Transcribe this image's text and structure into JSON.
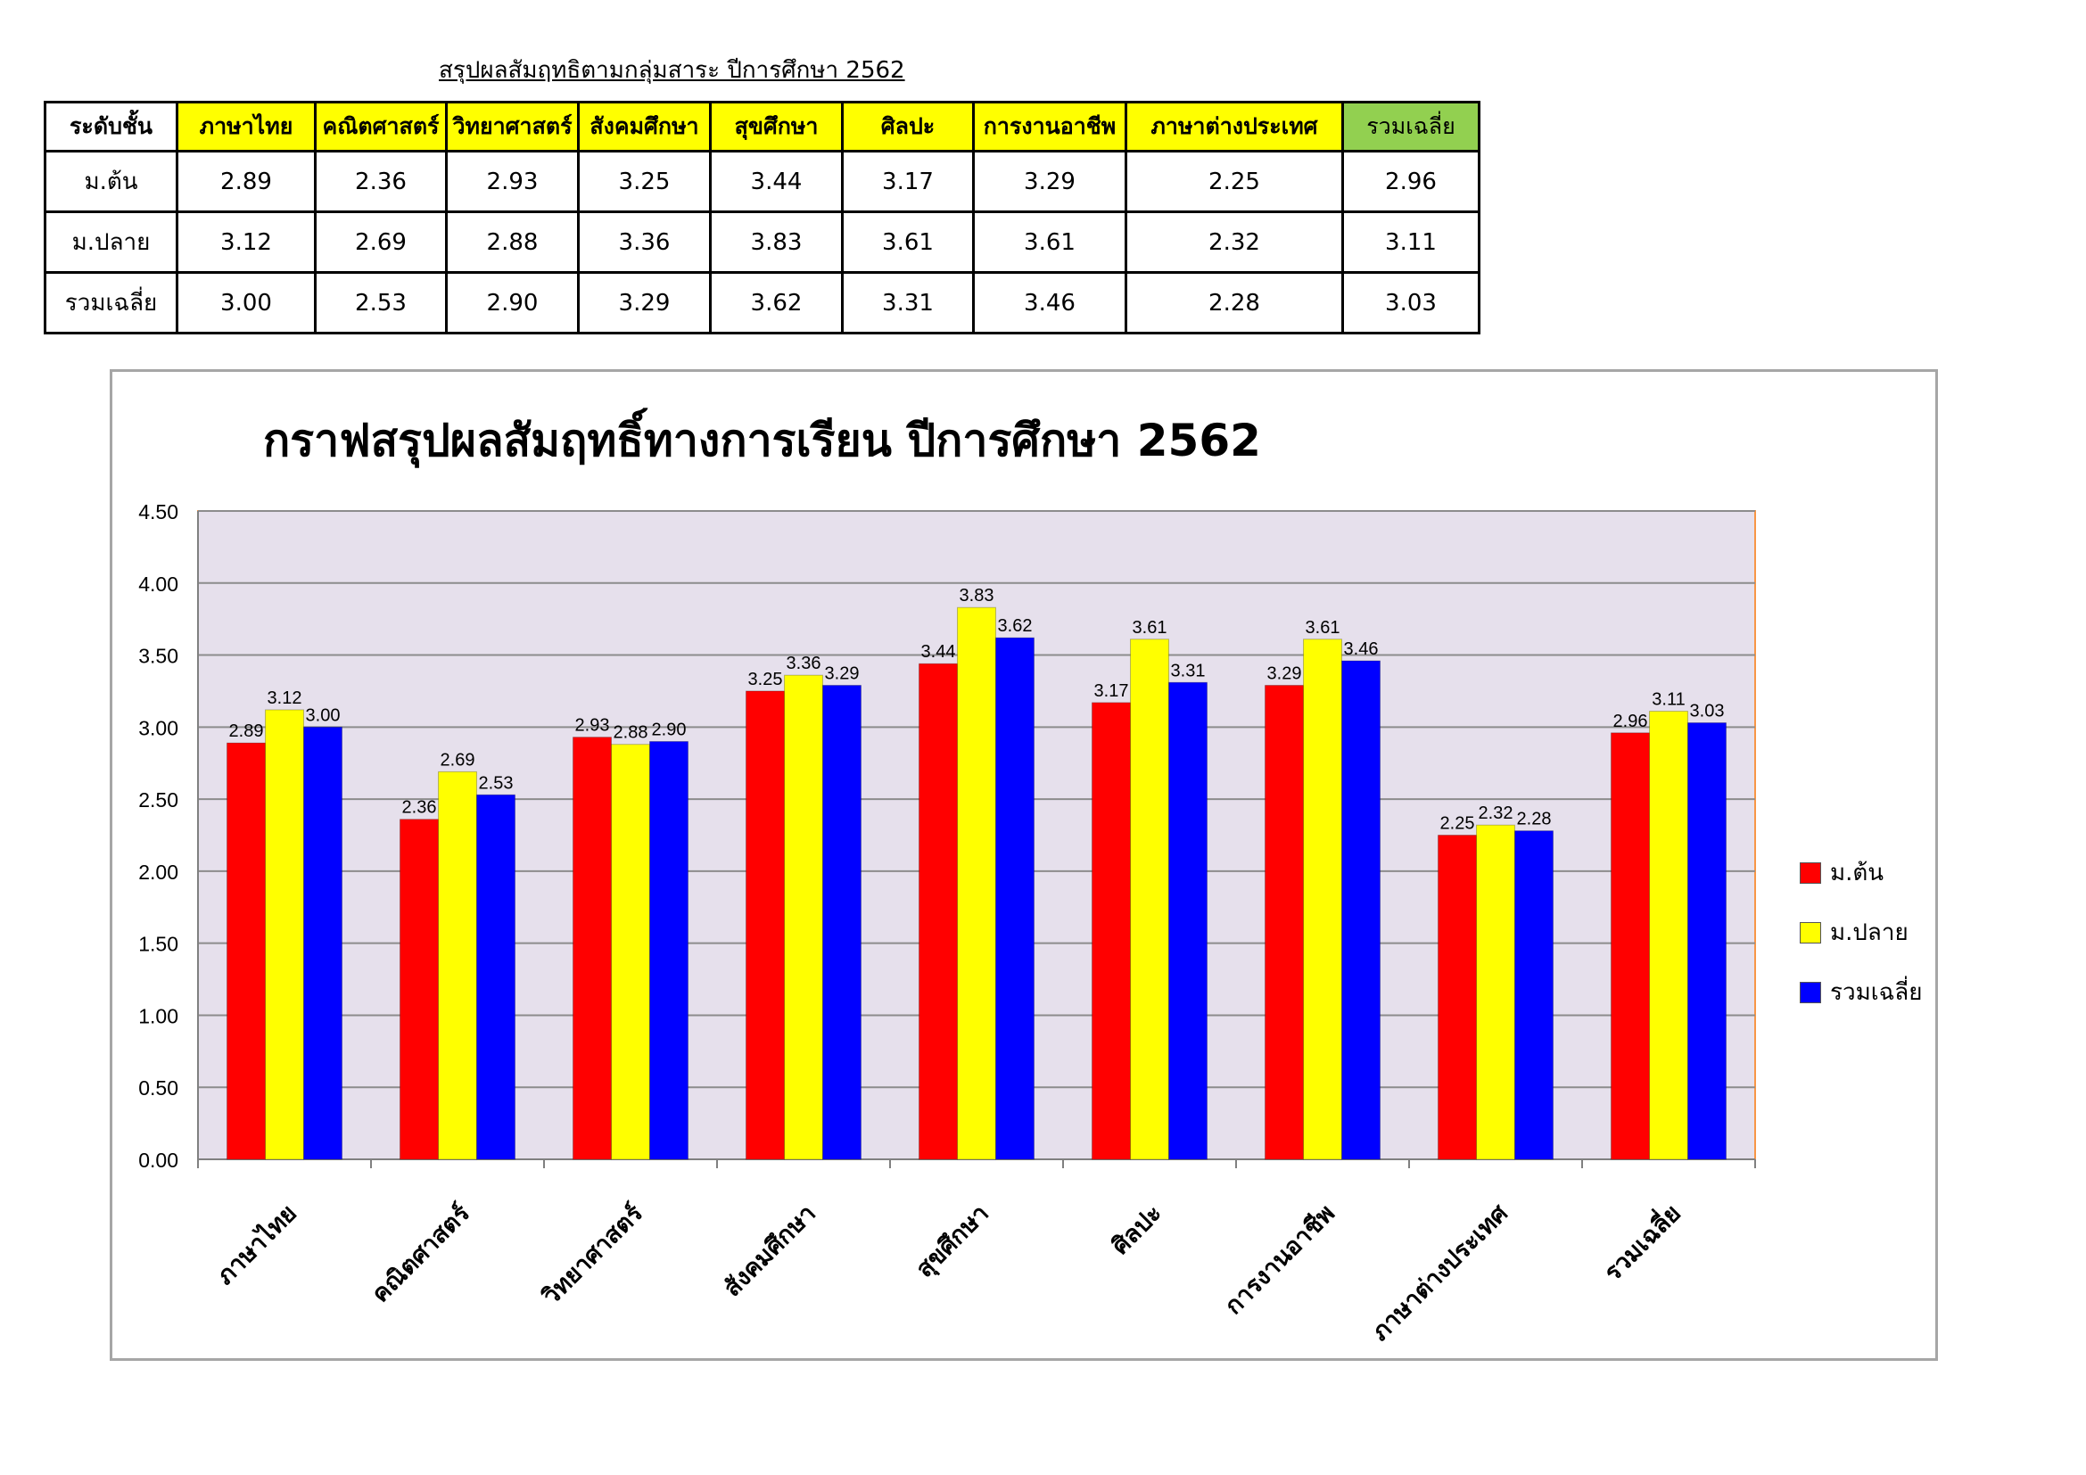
{
  "table": {
    "title": "สรุปผลสัมฤทธิตามกลุ่มสาระ ปีการศึกษา 2562",
    "header_level": "ระดับชั้น",
    "subjects": [
      "ภาษาไทย",
      "คณิตศาสตร์",
      "วิทยาศาสตร์",
      "สังคมศึกษา",
      "สุขศึกษา",
      "ศิลปะ",
      "การงานอาชีพ",
      "ภาษาต่างประเทศ",
      "รวมเฉลี่ย"
    ],
    "rows": [
      {
        "level": "ม.ต้น",
        "values": [
          "2.89",
          "2.36",
          "2.93",
          "3.25",
          "3.44",
          "3.17",
          "3.29",
          "2.25",
          "2.96"
        ]
      },
      {
        "level": "ม.ปลาย",
        "values": [
          "3.12",
          "2.69",
          "2.88",
          "3.36",
          "3.83",
          "3.61",
          "3.61",
          "2.32",
          "3.11"
        ]
      },
      {
        "level": "รวมเฉลี่ย",
        "values": [
          "3.00",
          "2.53",
          "2.90",
          "3.29",
          "3.62",
          "3.31",
          "3.46",
          "2.28",
          "3.03"
        ]
      }
    ],
    "colors": {
      "header_yellow": "#ffff00",
      "header_avg_green": "#92d050"
    }
  },
  "chart_data": {
    "type": "bar",
    "title": "กราฟสรุปผลสัมฤทธิ์ทางการเรียน ปีการศึกษา 2562",
    "categories": [
      "ภาษาไทย",
      "คณิตศาสตร์",
      "วิทยาศาสตร์",
      "สังคมศึกษา",
      "สุขศึกษา",
      "ศิลปะ",
      "การงานอาชีพ",
      "ภาษาต่างประเทศ",
      "รวมเฉลี่ย"
    ],
    "series": [
      {
        "name": "ม.ต้น",
        "color": "#ff0000",
        "values": [
          2.89,
          2.36,
          2.93,
          3.25,
          3.44,
          3.17,
          3.29,
          2.25,
          2.96
        ]
      },
      {
        "name": "ม.ปลาย",
        "color": "#ffff00",
        "values": [
          3.12,
          2.69,
          2.88,
          3.36,
          3.83,
          3.61,
          3.61,
          2.32,
          3.11
        ]
      },
      {
        "name": "รวมเฉลี่ย",
        "color": "#0000ff",
        "values": [
          3.0,
          2.53,
          2.9,
          3.29,
          3.62,
          3.31,
          3.46,
          2.28,
          3.03
        ]
      }
    ],
    "ylim": [
      0,
      4.5
    ],
    "yticks": [
      "0.00",
      "0.50",
      "1.00",
      "1.50",
      "2.00",
      "2.50",
      "3.00",
      "3.50",
      "4.00",
      "4.50"
    ],
    "xlabel": "",
    "ylabel": "",
    "grid": true,
    "legend_position": "right",
    "plot_background": "#e6e0ec",
    "plot_border_color": "#f79646"
  }
}
